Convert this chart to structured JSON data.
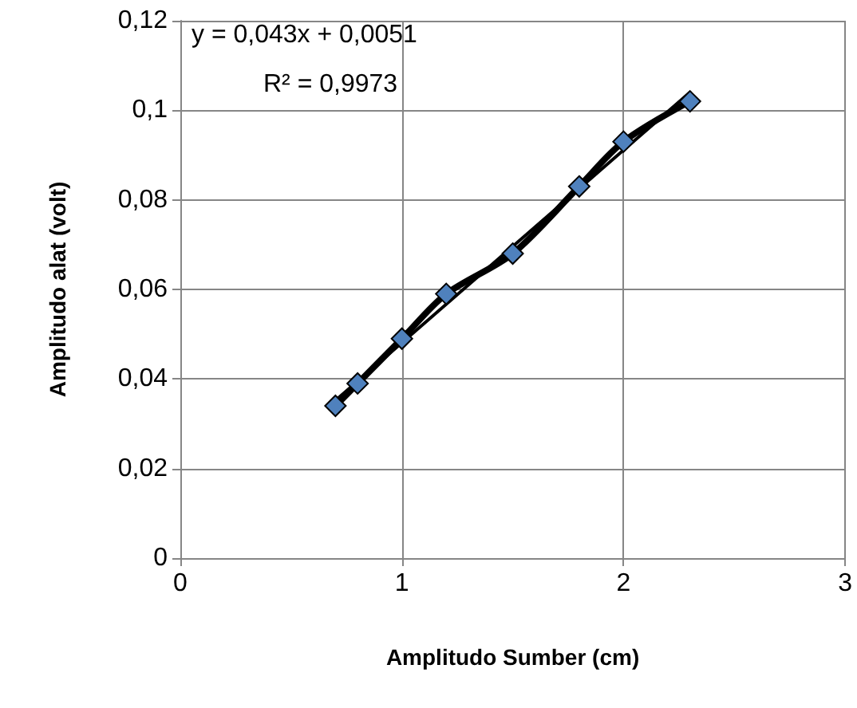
{
  "chart_data": {
    "type": "line",
    "xlabel": "Amplitudo Sumber (cm)",
    "ylabel": "Amplitudo alat (volt)",
    "annotations": [
      "y = 0,043x + 0,0051",
      "R² = 0,9973"
    ],
    "series": [
      {
        "color": "#4f81bd",
        "x": [
          0.7,
          0.8,
          1.0,
          1.2,
          1.5,
          1.8,
          2.0,
          2.3
        ],
        "values": [
          0.034,
          0.039,
          0.049,
          0.059,
          0.068,
          0.083,
          0.093,
          0.102
        ],
        "marker": "diamond"
      },
      {
        "color": "#000000",
        "x": [
          0.7,
          2.3
        ],
        "values": [
          0.0352,
          0.104
        ],
        "marker": "none"
      }
    ],
    "xlim": [
      0,
      3
    ],
    "xticks": [
      0,
      1,
      2,
      3
    ],
    "ylim": [
      0,
      0.12
    ],
    "yticks": [
      0,
      {
        "value": 0.02,
        "label": "0,02"
      },
      {
        "value": 0.04,
        "label": "0,04"
      },
      {
        "value": 0.06,
        "label": "0,06"
      },
      {
        "value": 0.08,
        "label": "0,08"
      },
      {
        "value": 0.1,
        "label": "0,1"
      },
      {
        "value": 0.12,
        "label": "0,12"
      }
    ],
    "grid": true
  }
}
